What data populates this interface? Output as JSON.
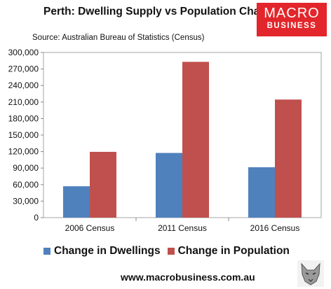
{
  "header": {
    "title": "Perth: Dwelling Supply vs Population Change",
    "source": "Source: Australian Bureau of Statistics (Census)"
  },
  "logo": {
    "line1": "MACRO",
    "line2": "BUSINESS",
    "color": "#e2262b"
  },
  "chart_data": {
    "type": "bar",
    "title": "Perth: Dwelling Supply vs Population Change",
    "categories": [
      "2006 Census",
      "2011 Census",
      "2016 Census"
    ],
    "series": [
      {
        "name": "Change in Dwellings",
        "values": [
          57000,
          117500,
          91500
        ],
        "color": "#4f81bd"
      },
      {
        "name": "Change in Population",
        "values": [
          119500,
          283000,
          214500
        ],
        "color": "#c0504d"
      }
    ],
    "ylim": [
      0,
      300000
    ],
    "yticks": [
      0,
      30000,
      60000,
      90000,
      120000,
      150000,
      180000,
      210000,
      240000,
      270000,
      300000
    ],
    "ytick_labels": [
      "0",
      "30,000",
      "60,000",
      "90,000",
      "120,000",
      "150,000",
      "180,000",
      "210,000",
      "240,000",
      "270,000",
      "300,000"
    ],
    "xlabel": "",
    "ylabel": "",
    "grid": false,
    "legend_position": "bottom"
  },
  "footer": {
    "website": "www.macrobusiness.com.au"
  }
}
